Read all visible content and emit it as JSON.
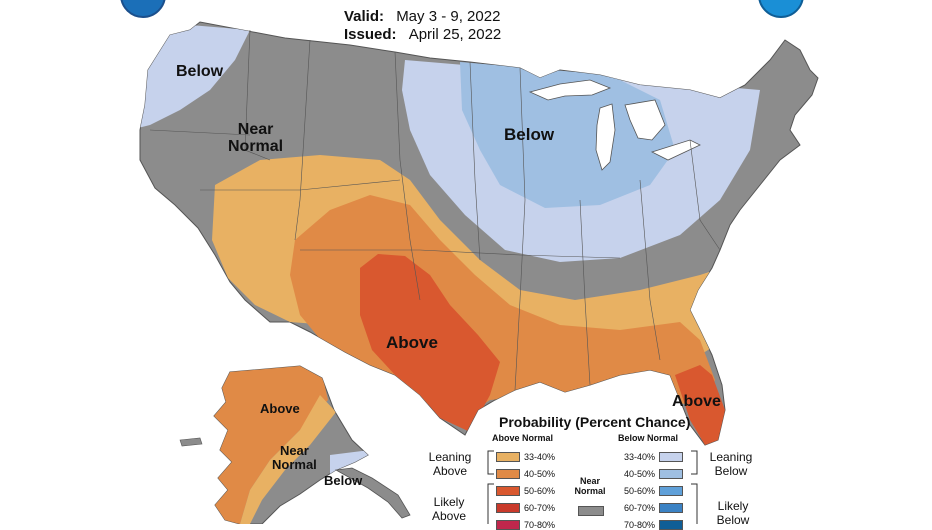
{
  "header": {
    "valid_label": "Valid:",
    "valid_value": "May 3 - 9, 2022",
    "issued_label": "Issued:",
    "issued_value": "April 25, 2022"
  },
  "logos": {
    "left": "noaa-logo",
    "right": "nws-logo"
  },
  "regions": {
    "below_west": "Below",
    "near_normal_west": "Near\nNormal",
    "below_north": "Below",
    "above_south": "Above",
    "above_florida": "Above",
    "alaska_above": "Above",
    "alaska_near_normal": "Near\nNormal",
    "alaska_below": "Below"
  },
  "legend": {
    "title": "Probability (Percent Chance)",
    "above_normal_header": "Above Normal",
    "below_normal_header": "Below Normal",
    "leaning_above": "Leaning\nAbove",
    "leaning_below": "Leaning\nBelow",
    "likely_above": "Likely\nAbove",
    "likely_below": "Likely\nBelow",
    "near_normal": "Near\nNormal",
    "above_items": [
      {
        "label": "33-40%",
        "color": "#e8b163"
      },
      {
        "label": "40-50%",
        "color": "#e08a46"
      },
      {
        "label": "50-60%",
        "color": "#d9582f"
      },
      {
        "label": "60-70%",
        "color": "#c93a2b"
      },
      {
        "label": "70-80%",
        "color": "#c0274c"
      }
    ],
    "below_items": [
      {
        "label": "33-40%",
        "color": "#c6d2ec"
      },
      {
        "label": "40-50%",
        "color": "#9fbfe2"
      },
      {
        "label": "50-60%",
        "color": "#5fa0d9"
      },
      {
        "label": "60-70%",
        "color": "#3b82c4"
      },
      {
        "label": "70-80%",
        "color": "#0f5e96"
      }
    ],
    "near_normal_color": "#8c8c8c"
  },
  "colors": {
    "near_normal": "#8c8c8c",
    "above_33_40": "#e8b163",
    "above_40_50": "#e08a46",
    "above_50_60": "#d9582f",
    "below_33_40": "#c6d2ec",
    "below_40_50": "#9fbfe2",
    "water": "#ffffff"
  }
}
